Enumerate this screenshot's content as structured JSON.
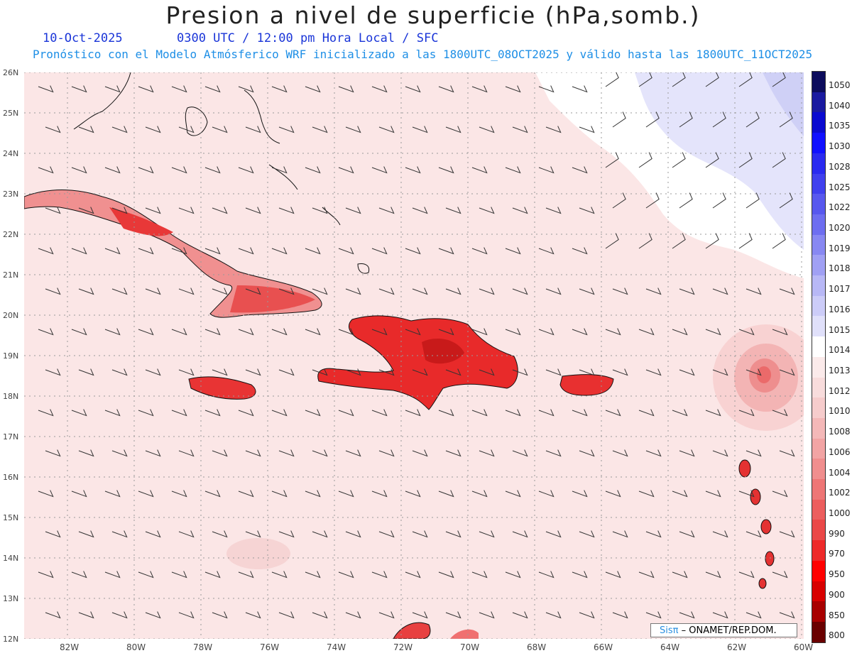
{
  "title": "Presion a nivel de superficie (hPa,somb.)",
  "date": "10-Oct-2025",
  "time_line": "0300 UTC / 12:00 pm Hora Local / SFC",
  "subtitle": "Pronóstico con el Modelo Atmósferico WRF inicializado a las 1800UTC_08OCT2025 y válido hasta las  1800UTC_11OCT2025",
  "map": {
    "lat_labels": [
      "26N",
      "25N",
      "24N",
      "23N",
      "22N",
      "21N",
      "20N",
      "19N",
      "18N",
      "17N",
      "16N",
      "15N",
      "14N",
      "13N",
      "12N"
    ],
    "lon_labels": [
      "82W",
      "80W",
      "78W",
      "76W",
      "74W",
      "72W",
      "70W",
      "68W",
      "66W",
      "64W",
      "62W",
      "60W"
    ]
  },
  "colorbar": {
    "levels": [
      "1050",
      "1040",
      "1035",
      "1030",
      "1028",
      "1025",
      "1022",
      "1020",
      "1019",
      "1018",
      "1017",
      "1016",
      "1015",
      "1014",
      "1013",
      "1012",
      "1010",
      "1008",
      "1006",
      "1004",
      "1002",
      "1000",
      "990",
      "970",
      "950",
      "900",
      "850",
      "800"
    ],
    "colors": [
      "#0c0c5c",
      "#1a1aa0",
      "#0a0ad0",
      "#1010ff",
      "#2a2af0",
      "#4040ee",
      "#5858ee",
      "#6e6ef0",
      "#8888f2",
      "#a0a0f4",
      "#b8b8f6",
      "#ccccf8",
      "#e0e0fa",
      "#ffffff",
      "#fbeaea",
      "#f8dcdc",
      "#f6cccc",
      "#f4b8b8",
      "#f2a4a4",
      "#f08e8e",
      "#ee7676",
      "#ec5e5e",
      "#ea4848",
      "#ee2a2a",
      "#ff0000",
      "#d80000",
      "#a80000",
      "#6a0000"
    ]
  },
  "credit": {
    "logo": "Sisπ",
    "text": " – ONAMET/REP.DOM."
  }
}
